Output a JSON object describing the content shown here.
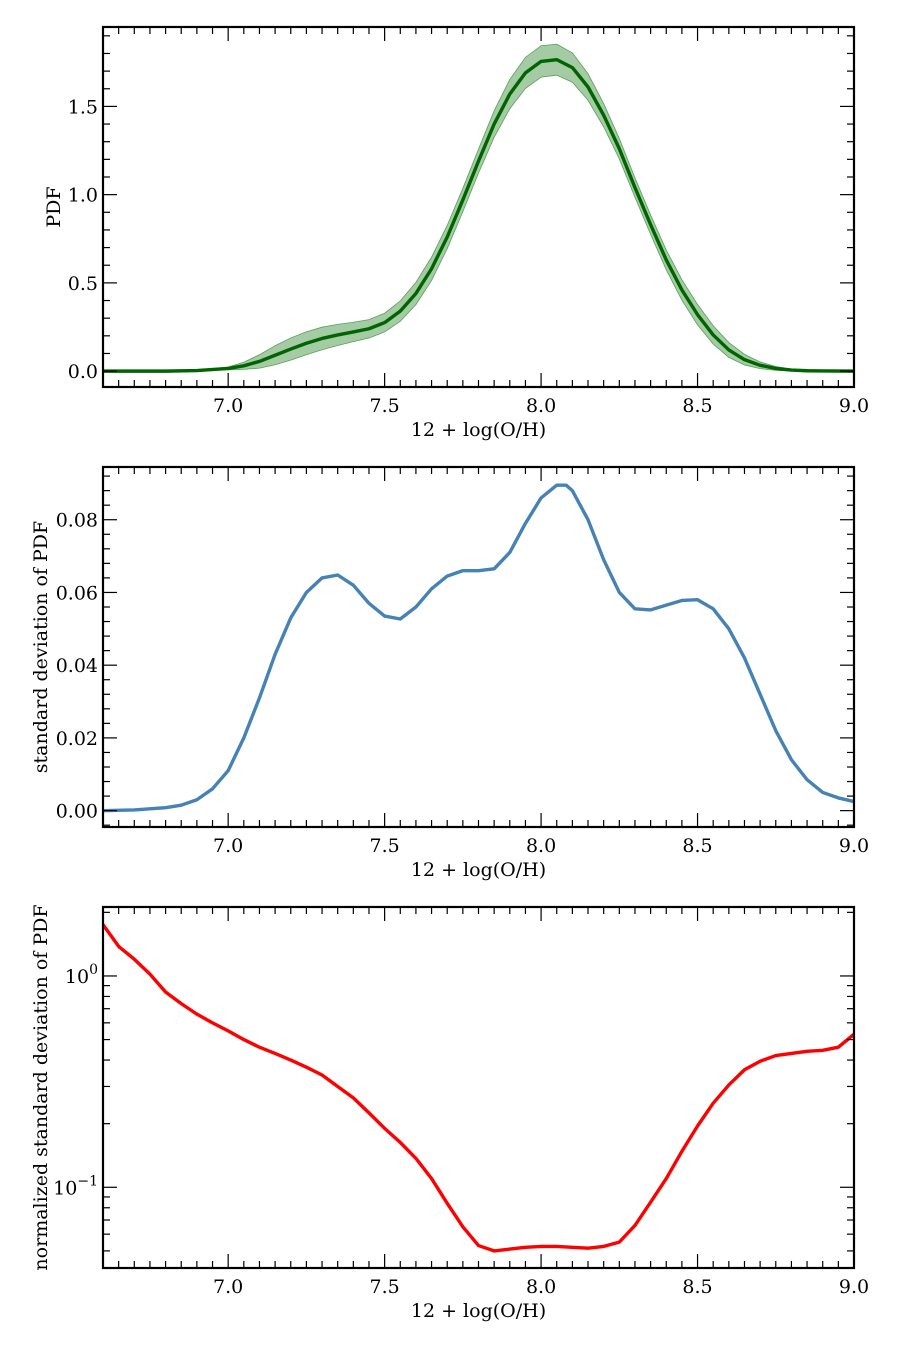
{
  "chart_data": [
    {
      "type": "area",
      "panel": "top",
      "xlabel": "12 + log(O/H)",
      "ylabel": "PDF",
      "xlim": [
        6.6,
        9.0
      ],
      "ylim": [
        -0.09,
        1.95
      ],
      "y_scale": "linear",
      "xticks": [
        7.0,
        7.5,
        8.0,
        8.5,
        9.0
      ],
      "xtick_labels": [
        "7.0",
        "7.5",
        "8.0",
        "8.5",
        "9.0"
      ],
      "yticks": [
        0.0,
        0.5,
        1.0,
        1.5
      ],
      "ytick_labels": [
        "0.0",
        "0.5",
        "1.0",
        "1.5"
      ],
      "series": [
        {
          "name": "PDF",
          "color": "#006400",
          "band_color": "#5aa05a",
          "x": [
            6.6,
            6.8,
            6.9,
            7.0,
            7.05,
            7.1,
            7.15,
            7.2,
            7.25,
            7.3,
            7.35,
            7.4,
            7.45,
            7.5,
            7.55,
            7.6,
            7.65,
            7.7,
            7.75,
            7.8,
            7.85,
            7.9,
            7.95,
            8.0,
            8.05,
            8.1,
            8.15,
            8.2,
            8.25,
            8.3,
            8.35,
            8.4,
            8.45,
            8.5,
            8.55,
            8.6,
            8.65,
            8.7,
            8.75,
            8.8,
            8.85,
            8.9,
            9.0
          ],
          "y": [
            0.0,
            0.0,
            0.003,
            0.015,
            0.03,
            0.055,
            0.09,
            0.125,
            0.158,
            0.185,
            0.205,
            0.222,
            0.24,
            0.275,
            0.34,
            0.44,
            0.58,
            0.76,
            0.97,
            1.19,
            1.4,
            1.57,
            1.69,
            1.755,
            1.765,
            1.72,
            1.61,
            1.45,
            1.26,
            1.04,
            0.83,
            0.63,
            0.46,
            0.32,
            0.205,
            0.12,
            0.065,
            0.033,
            0.015,
            0.006,
            0.002,
            0.001,
            0.0
          ],
          "std": [
            0.0,
            0.0,
            0.001,
            0.008,
            0.02,
            0.038,
            0.054,
            0.063,
            0.065,
            0.064,
            0.06,
            0.055,
            0.052,
            0.053,
            0.058,
            0.063,
            0.066,
            0.066,
            0.066,
            0.068,
            0.075,
            0.083,
            0.088,
            0.089,
            0.088,
            0.083,
            0.075,
            0.066,
            0.058,
            0.055,
            0.055,
            0.056,
            0.058,
            0.058,
            0.052,
            0.042,
            0.03,
            0.019,
            0.011,
            0.006,
            0.003,
            0.002,
            0.001
          ]
        }
      ]
    },
    {
      "type": "line",
      "panel": "middle",
      "xlabel": "12 + log(O/H)",
      "ylabel": "standard deviation of PDF",
      "xlim": [
        6.6,
        9.0
      ],
      "ylim": [
        -0.0045,
        0.0945
      ],
      "y_scale": "linear",
      "xticks": [
        7.0,
        7.5,
        8.0,
        8.5,
        9.0
      ],
      "xtick_labels": [
        "7.0",
        "7.5",
        "8.0",
        "8.5",
        "9.0"
      ],
      "yticks": [
        0.0,
        0.02,
        0.04,
        0.06,
        0.08
      ],
      "ytick_labels": [
        "0.00",
        "0.02",
        "0.04",
        "0.06",
        "0.08"
      ],
      "series": [
        {
          "name": "standard deviation of PDF",
          "color": "#4682b4",
          "x": [
            6.6,
            6.7,
            6.8,
            6.85,
            6.9,
            6.95,
            7.0,
            7.05,
            7.1,
            7.15,
            7.2,
            7.25,
            7.3,
            7.35,
            7.4,
            7.45,
            7.5,
            7.55,
            7.6,
            7.65,
            7.7,
            7.75,
            7.8,
            7.85,
            7.9,
            7.95,
            8.0,
            8.05,
            8.08,
            8.1,
            8.15,
            8.2,
            8.25,
            8.3,
            8.35,
            8.4,
            8.45,
            8.5,
            8.55,
            8.6,
            8.65,
            8.7,
            8.75,
            8.8,
            8.85,
            8.9,
            8.95,
            9.0
          ],
          "y": [
            0.0,
            0.0002,
            0.0008,
            0.0015,
            0.003,
            0.006,
            0.011,
            0.02,
            0.031,
            0.043,
            0.053,
            0.06,
            0.064,
            0.0648,
            0.062,
            0.057,
            0.0535,
            0.0527,
            0.056,
            0.061,
            0.0645,
            0.066,
            0.066,
            0.0665,
            0.071,
            0.079,
            0.086,
            0.0895,
            0.0895,
            0.088,
            0.08,
            0.069,
            0.06,
            0.0555,
            0.0552,
            0.0565,
            0.0578,
            0.058,
            0.0555,
            0.05,
            0.042,
            0.032,
            0.022,
            0.014,
            0.0085,
            0.005,
            0.0035,
            0.0025
          ]
        }
      ]
    },
    {
      "type": "line",
      "panel": "bottom",
      "xlabel": "12 + log(O/H)",
      "ylabel": "normalized standard deviation of PDF",
      "xlim": [
        6.6,
        9.0
      ],
      "ylim": [
        0.0415,
        2.12
      ],
      "y_scale": "log",
      "xticks": [
        7.0,
        7.5,
        8.0,
        8.5,
        9.0
      ],
      "xtick_labels": [
        "7.0",
        "7.5",
        "8.0",
        "8.5",
        "9.0"
      ],
      "yticks": [
        0.1,
        1.0
      ],
      "ytick_labels": [
        {
          "base": "10",
          "exp": "−1"
        },
        {
          "base": "10",
          "exp": "0"
        }
      ],
      "series": [
        {
          "name": "normalized standard deviation of PDF",
          "color": "#ff0000",
          "x": [
            6.6,
            6.65,
            6.7,
            6.75,
            6.8,
            6.85,
            6.9,
            6.95,
            7.0,
            7.05,
            7.1,
            7.15,
            7.2,
            7.25,
            7.3,
            7.35,
            7.4,
            7.45,
            7.5,
            7.55,
            7.6,
            7.65,
            7.7,
            7.75,
            7.8,
            7.85,
            7.9,
            7.95,
            8.0,
            8.05,
            8.1,
            8.15,
            8.2,
            8.25,
            8.3,
            8.35,
            8.4,
            8.45,
            8.5,
            8.55,
            8.6,
            8.65,
            8.7,
            8.75,
            8.8,
            8.85,
            8.9,
            8.95,
            9.0
          ],
          "y": [
            1.75,
            1.38,
            1.2,
            1.02,
            0.84,
            0.74,
            0.66,
            0.6,
            0.55,
            0.5,
            0.46,
            0.43,
            0.4,
            0.37,
            0.34,
            0.3,
            0.265,
            0.225,
            0.19,
            0.163,
            0.137,
            0.11,
            0.084,
            0.065,
            0.053,
            0.05,
            0.051,
            0.052,
            0.0525,
            0.0525,
            0.052,
            0.0515,
            0.0525,
            0.055,
            0.066,
            0.085,
            0.11,
            0.148,
            0.195,
            0.25,
            0.305,
            0.36,
            0.395,
            0.42,
            0.43,
            0.44,
            0.445,
            0.46,
            0.53
          ]
        }
      ]
    }
  ]
}
